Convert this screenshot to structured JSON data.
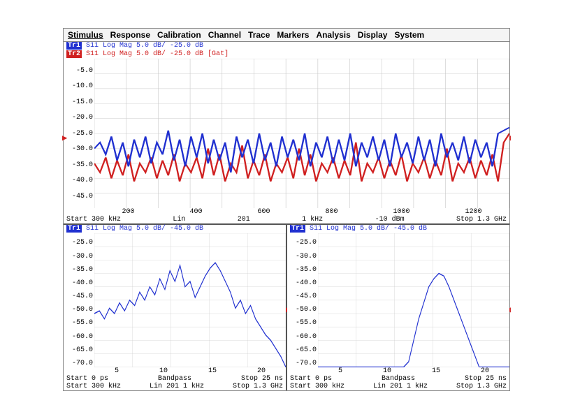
{
  "menu": [
    "Stimulus",
    "Response",
    "Calibration",
    "Channel",
    "Trace",
    "Markers",
    "Analysis",
    "Display",
    "System"
  ],
  "top_chart": {
    "trace1": {
      "id": "Tr1",
      "text": "S11 Log Mag 5.0 dB/ -25.0 dB",
      "color": "#2030d0",
      "bg": "#2030d0",
      "fg": "#ffffff"
    },
    "trace2": {
      "id": "Tr2",
      "text": "S11 Log Mag 5.0 dB/ -25.0 dB [Gat]",
      "color": "#d02020",
      "bg": "#d02020",
      "fg": "#ffffff"
    },
    "ylabels": [
      "",
      "-5.0",
      "-10.0",
      "-15.0",
      "-20.0",
      "-25.0",
      "-30.0",
      "-35.0",
      "-40.0",
      "-45.0",
      ""
    ],
    "ylim": [
      -50,
      0
    ],
    "xlabels": [
      "200",
      "400",
      "600",
      "800",
      "1000",
      "1200"
    ],
    "xlim": [
      0,
      1300
    ],
    "footer": [
      "Start 300 kHz",
      "Lin",
      "201",
      "1 kHz",
      "-10 dBm",
      "Stop 1.3 GHz"
    ],
    "grid_color": "#c8c8c8",
    "series_blue": [
      -30,
      -28,
      -32,
      -26,
      -34,
      -28,
      -36,
      -27,
      -33,
      -26,
      -35,
      -28,
      -32,
      -24,
      -34,
      -27,
      -36,
      -26,
      -33,
      -25,
      -35,
      -27,
      -34,
      -28,
      -38,
      -26,
      -33,
      -27,
      -35,
      -25,
      -34,
      -28,
      -36,
      -26,
      -33,
      -27,
      -34,
      -25,
      -36,
      -28,
      -33,
      -26,
      -35,
      -27,
      -34,
      -25,
      -36,
      -28,
      -33,
      -26,
      -34,
      -27,
      -36,
      -25,
      -33,
      -28,
      -35,
      -26,
      -34,
      -27,
      -36,
      -25,
      -33,
      -28,
      -34,
      -26,
      -35,
      -27,
      -33,
      -28,
      -36,
      -25,
      -24,
      -23
    ],
    "series_red": [
      -35,
      -38,
      -33,
      -40,
      -34,
      -39,
      -32,
      -41,
      -35,
      -38,
      -33,
      -40,
      -34,
      -39,
      -32,
      -41,
      -35,
      -38,
      -33,
      -40,
      -30,
      -39,
      -32,
      -41,
      -35,
      -38,
      -29,
      -40,
      -34,
      -39,
      -32,
      -41,
      -35,
      -38,
      -33,
      -40,
      -30,
      -39,
      -32,
      -41,
      -35,
      -38,
      -33,
      -40,
      -34,
      -39,
      -28,
      -41,
      -35,
      -38,
      -33,
      -40,
      -34,
      -39,
      -32,
      -41,
      -35,
      -38,
      -33,
      -40,
      -34,
      -39,
      -30,
      -41,
      -35,
      -38,
      -33,
      -40,
      -34,
      -39,
      -32,
      -41,
      -28,
      -25
    ]
  },
  "bottom_left": {
    "trace1": {
      "id": "Tr1",
      "text": "S11 Log Mag 5.0 dB/ -45.0 dB",
      "color": "#2030d0",
      "bg": "#2030d0",
      "fg": "#ffffff"
    },
    "ylabels": [
      "",
      "-25.0",
      "-30.0",
      "-35.0",
      "-40.0",
      "-45.0",
      "-50.0",
      "-55.0",
      "-60.0",
      "-65.0",
      "-70.0"
    ],
    "ylim": [
      -70,
      -20
    ],
    "xlabels": [
      "5",
      "10",
      "15",
      "20"
    ],
    "xlim": [
      0,
      25
    ],
    "footer1": [
      "Start 0 ps",
      "Bandpass",
      "Stop 25 ns"
    ],
    "footer2": [
      "Start 300 kHz",
      "Lin 201 1 kHz",
      "Stop 1.3 GHz"
    ],
    "grid_color": "#c8c8c8",
    "series": [
      -50,
      -49,
      -52,
      -48,
      -50,
      -46,
      -49,
      -45,
      -47,
      -42,
      -45,
      -40,
      -43,
      -37,
      -41,
      -34,
      -38,
      -32,
      -40,
      -38,
      -44,
      -40,
      -36,
      -33,
      -31,
      -34,
      -38,
      -42,
      -48,
      -45,
      -50,
      -47,
      -52,
      -55,
      -58,
      -60,
      -63,
      -66,
      -70
    ]
  },
  "bottom_right": {
    "trace1": {
      "id": "Tr1",
      "text": "S11 Log Mag 5.0 dB/ -45.0 dB",
      "color": "#2030d0",
      "bg": "#2030d0",
      "fg": "#ffffff"
    },
    "ylabels": [
      "",
      "-25.0",
      "-30.0",
      "-35.0",
      "-40.0",
      "-45.0",
      "-50.0",
      "-55.0",
      "-60.0",
      "-65.0",
      "-70.0"
    ],
    "ylim": [
      -70,
      -20
    ],
    "xlabels": [
      "5",
      "10",
      "15",
      "20"
    ],
    "xlim": [
      0,
      25
    ],
    "footer1": [
      "Start 0 ps",
      "Bandpass",
      "Stop 25 ns"
    ],
    "footer2": [
      "Start 300 kHz",
      "Lin 201 1 kHz",
      "Stop 1.3 GHz"
    ],
    "grid_color": "#c8c8c8",
    "series": [
      -70,
      -70,
      -70,
      -70,
      -70,
      -70,
      -70,
      -70,
      -70,
      -70,
      -70,
      -70,
      -70,
      -70,
      -70,
      -70,
      -70,
      -70,
      -68,
      -60,
      -52,
      -46,
      -40,
      -37,
      -35,
      -36,
      -40,
      -45,
      -50,
      -55,
      -60,
      -65,
      -70,
      -70,
      -70,
      -70,
      -70,
      -70,
      -70
    ]
  },
  "marker_color_left": "#d02020",
  "marker_color_right": "#d02020"
}
